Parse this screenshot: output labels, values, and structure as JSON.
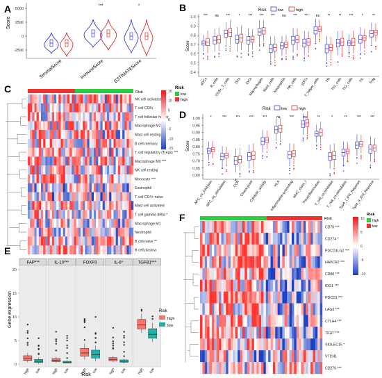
{
  "colors": {
    "low": "#3b3bdc",
    "high": "#dd2b2b",
    "green": "#2ecc40",
    "red": "#ee3333",
    "teal": "#20b2aa",
    "salmon": "#f8766d",
    "heat_hi": "#e41a1c",
    "heat_mid": "#ffffff",
    "heat_lo": "#1f3fbf"
  },
  "panels": {
    "A": {
      "letter": "A",
      "ylabel": "Score",
      "yticks": [
        "5000",
        "2500",
        "0",
        "-2500"
      ],
      "categories": [
        "StromalScore",
        "ImmuneScore",
        "ESTIMATEScore"
      ],
      "sig": [
        "",
        "***",
        "*"
      ]
    },
    "B": {
      "letter": "B",
      "legend_title": "Risk",
      "legend_items": [
        "low",
        "high"
      ],
      "ylabel": "Score",
      "yticks": [
        "1.0",
        "0.9",
        "0.8",
        "0.7",
        "0.6",
        "0.5",
        "0.4"
      ],
      "categories": [
        "aDCs",
        "B_cells",
        "CD8+_T_cells",
        "DCs",
        "iDCs",
        "Macrophages",
        "Mast_cells",
        "Neutrophils",
        "NK_cells",
        "pDCs",
        "T_helper_cells",
        "Tfh",
        "Th1_cells",
        "Th2_cells",
        "TIL",
        "Treg"
      ],
      "sig": [
        "***",
        "ns",
        "***",
        "*",
        "***",
        "***",
        "***",
        "ns",
        "***",
        "***",
        "ns",
        "**",
        "**",
        "***",
        "*",
        "**"
      ]
    },
    "C": {
      "letter": "C",
      "risk_label": "Risk",
      "legend_title": "Risk",
      "legend_items": [
        "low",
        "high"
      ],
      "scale_ticks": [
        "15",
        "10",
        "5",
        "0",
        "-5",
        "-10",
        "-15"
      ],
      "rows": [
        "NK cell activated",
        "T cell CD8+",
        "T cell follicular helper",
        "Macrophage M2",
        "Mast cell resting",
        "B cell memory",
        "T cell regulatory (Tregs) ***",
        "Macrophage M0 ***",
        "NK cell resting",
        "Monocyte ***",
        "Eosinophil",
        "T cell CD4+ naive",
        "Mast cell activated",
        "T cell gamma delta *",
        "Macrophage M1",
        "Neutrophil",
        "B cell naive **",
        "B cell plasma"
      ]
    },
    "D": {
      "letter": "D",
      "legend_title": "Risk",
      "legend_items": [
        "low",
        "high"
      ],
      "ylabel": "Score",
      "yticks": [
        "1.00",
        "0.95",
        "0.90",
        "0.85",
        "0.80",
        "0.75",
        "0.70",
        "0.65",
        "0.60"
      ],
      "categories": [
        "APC_co_inhibition",
        "APC_co_stimulation",
        "CCR",
        "Check-point",
        "Cytolytic_activity",
        "HLA",
        "Inflammation-promoting",
        "MHC_class_I",
        "Parainflammation",
        "T_cell_co-inhibition",
        "T_cell_co-stimulation",
        "Type_I_IFN_Reponse",
        "Type_II_IFN_Reponse"
      ],
      "sig": [
        "*",
        "***",
        "***",
        "***",
        "***",
        "ns",
        "***",
        "ns",
        "**",
        "*",
        "**",
        "***",
        "***"
      ]
    },
    "E": {
      "letter": "E",
      "ylabel": "Gene expression",
      "xlabel": "Risk",
      "yticks": [
        "20",
        "15",
        "10",
        "5",
        "0"
      ],
      "facets": [
        "FAP***",
        "IL-10***",
        "FOXP3",
        "IL-6*",
        "TGFB1***"
      ],
      "xticks": [
        "high",
        "low"
      ],
      "legend_title": "Risk",
      "legend_items": [
        "high",
        "low"
      ]
    },
    "F": {
      "letter": "F",
      "risk_label": "Risk",
      "legend_title": "Risk",
      "legend_items": [
        "high",
        "low"
      ],
      "scale_ticks": [
        "10",
        "5",
        "0",
        "-5",
        "-10"
      ],
      "rows": [
        "CD70 ***",
        "CD274 *",
        "PDCD1LG2 ***",
        "HAVCR2 ***",
        "CD80 ***",
        "IDO1 ***",
        "PDCD1 ***",
        "LAG3 ***",
        "CTLA4 ***",
        "TIGIT ***",
        "SIGLEC15 *",
        "VTCN1",
        "CD276 ***"
      ]
    }
  }
}
